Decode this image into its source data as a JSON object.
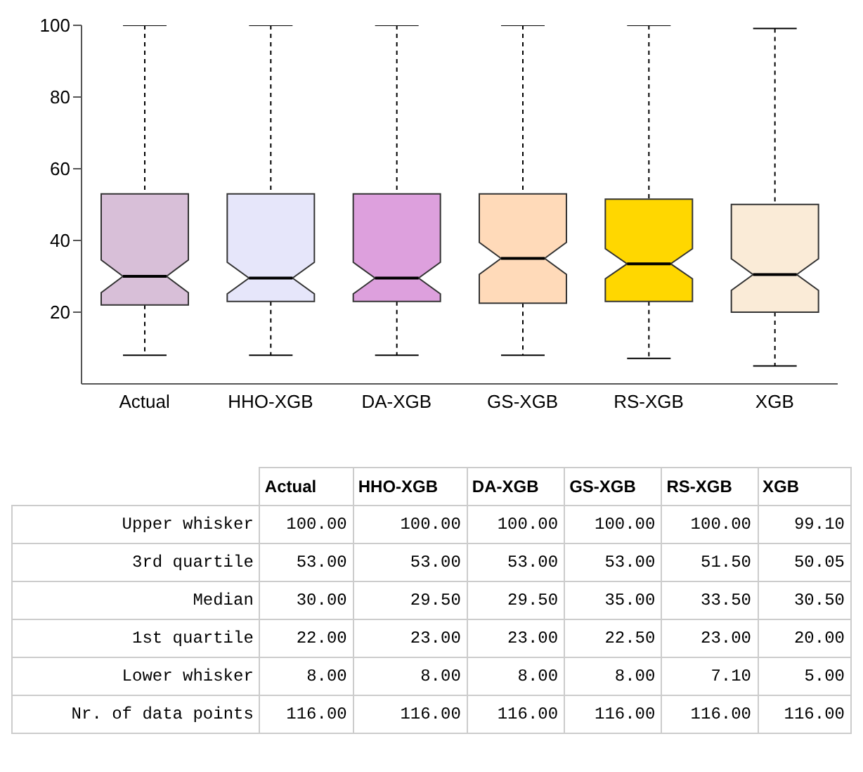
{
  "chart_data": [
    {
      "type": "box",
      "categories": [
        "Actual",
        "HHO-XGB",
        "DA-XGB",
        "GS-XGB",
        "RS-XGB",
        "XGB"
      ],
      "colors": [
        "#d8bfd8",
        "#e6e6fa",
        "#dda0dd",
        "#ffdab9",
        "#ffd700",
        "#faebd7"
      ],
      "boxes": [
        {
          "low": 8,
          "q1": 22,
          "median": 30,
          "q3": 53,
          "high": 100
        },
        {
          "low": 8,
          "q1": 23,
          "median": 29.5,
          "q3": 53,
          "high": 100
        },
        {
          "low": 8,
          "q1": 23,
          "median": 29.5,
          "q3": 53,
          "high": 100
        },
        {
          "low": 8,
          "q1": 22.5,
          "median": 35,
          "q3": 53,
          "high": 100
        },
        {
          "low": 7.1,
          "q1": 23,
          "median": 33.5,
          "q3": 51.5,
          "high": 100
        },
        {
          "low": 5,
          "q1": 20,
          "median": 30.5,
          "q3": 50.05,
          "high": 99.1
        }
      ],
      "ylim": [
        0,
        100
      ],
      "yticks": [
        20,
        40,
        60,
        80,
        100
      ],
      "grid": false,
      "legend": false
    },
    {
      "type": "other",
      "categories": [
        "Actual",
        "HHO-XGB",
        "DA-XGB",
        "GS-XGB",
        "RS-XGB",
        "XGB"
      ],
      "y_categories": [
        "Upper whisker",
        "3rd quartile",
        "Median",
        "1st quartile",
        "Lower whisker",
        "Nr. of data points"
      ],
      "cell_labels": [
        [
          "100.00",
          "100.00",
          "100.00",
          "100.00",
          "100.00",
          "99.10"
        ],
        [
          "53.00",
          "53.00",
          "53.00",
          "53.00",
          "51.50",
          "50.05"
        ],
        [
          "30.00",
          "29.50",
          "29.50",
          "35.00",
          "33.50",
          "30.50"
        ],
        [
          "22.00",
          "23.00",
          "23.00",
          "22.50",
          "23.00",
          "20.00"
        ],
        [
          "8.00",
          "8.00",
          "8.00",
          "8.00",
          "7.10",
          "5.00"
        ],
        [
          "116.00",
          "116.00",
          "116.00",
          "116.00",
          "116.00",
          "116.00"
        ]
      ]
    }
  ]
}
